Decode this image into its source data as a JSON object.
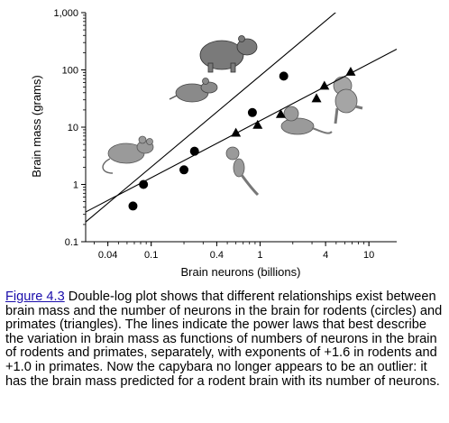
{
  "chart_data": {
    "type": "scatter",
    "title": "",
    "xlabel": "Brain neurons (billions)",
    "ylabel": "Brain mass (grams)",
    "x_scale": "log",
    "y_scale": "log",
    "xlim": [
      0.025,
      18
    ],
    "ylim": [
      0.1,
      1000
    ],
    "x_ticks": [
      {
        "value": 0.04,
        "label": "0.04"
      },
      {
        "value": 0.1,
        "label": "0.1"
      },
      {
        "value": 0.4,
        "label": "0.4"
      },
      {
        "value": 1,
        "label": "1"
      },
      {
        "value": 4,
        "label": "4"
      },
      {
        "value": 10,
        "label": "10"
      }
    ],
    "y_ticks": [
      {
        "value": 0.1,
        "label": "0.1"
      },
      {
        "value": 1,
        "label": "1"
      },
      {
        "value": 10,
        "label": "10"
      },
      {
        "value": 100,
        "label": "100"
      },
      {
        "value": 1000,
        "label": "1,000"
      }
    ],
    "grid": false,
    "legend": "none",
    "series": [
      {
        "marker": "circle",
        "color": "#000000",
        "points": [
          {
            "x": 0.068,
            "y": 0.42
          },
          {
            "x": 0.085,
            "y": 1.0
          },
          {
            "x": 0.2,
            "y": 1.8
          },
          {
            "x": 0.25,
            "y": 3.8
          },
          {
            "x": 0.85,
            "y": 18
          },
          {
            "x": 1.65,
            "y": 78
          }
        ]
      },
      {
        "marker": "triangle",
        "color": "#000000",
        "points": [
          {
            "x": 0.6,
            "y": 8
          },
          {
            "x": 0.95,
            "y": 11
          },
          {
            "x": 1.55,
            "y": 17
          },
          {
            "x": 3.3,
            "y": 32
          },
          {
            "x": 3.9,
            "y": 53
          },
          {
            "x": 6.8,
            "y": 93
          }
        ]
      }
    ],
    "fit_lines": [
      {
        "exponent": 1.6,
        "x": [
          0.02,
          7
        ],
        "y": [
          0.155,
          1750
        ]
      },
      {
        "exponent": 1.0,
        "x": [
          0.025,
          18
        ],
        "y": [
          0.33,
          230
        ]
      }
    ],
    "animal_icons": [
      "mouse-icon",
      "rat-icon",
      "capybara-icon",
      "marmoset-icon",
      "monkey-icon",
      "macaque-icon"
    ]
  },
  "caption": {
    "link": "Figure 4.3",
    "text": " Double-log plot shows that different relationships exist between brain mass and the number of neurons in the brain for rodents (circles) and primates (triangles). The lines indicate the power laws that best describe the variation in brain mass as functions of numbers of neurons in the brain of rodents and primates, separately, with exponents of +1.6 in rodents and +1.0 in primates. Now the capybara no longer appears to be an outlier: it has the brain mass predicted for a rodent brain with its number of neurons."
  }
}
